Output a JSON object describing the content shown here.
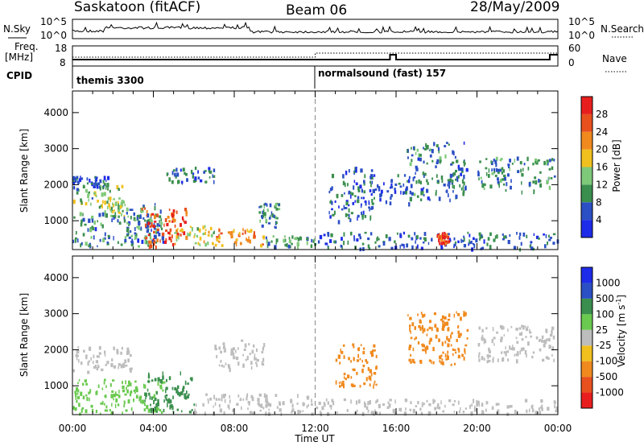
{
  "header": {
    "station": "Saskatoon (fitACF)",
    "beam": "Beam 06",
    "date": "28/May/2009"
  },
  "top_panels": {
    "nsky_label": "N.Sky",
    "nsky_ticks": [
      "10^5",
      "10^0"
    ],
    "nsky_right_ticks": [
      "10^5",
      "10^0"
    ],
    "nsearch_label": "N.Search",
    "freq_label_1": "Freq.",
    "freq_label_2": "[MHz]",
    "freq_ticks": [
      "18",
      "8"
    ],
    "nave_ticks": [
      "60",
      "0"
    ],
    "nave_label": "Nave",
    "cpid_label": "CPID",
    "cpid_segments": [
      {
        "label": "themis 3300",
        "start_hour": 0,
        "end_hour": 12
      },
      {
        "label": "normalsound (fast) 157",
        "start_hour": 12,
        "end_hour": 24
      }
    ]
  },
  "chart_data": [
    {
      "type": "heatmap",
      "title": "",
      "xlabel": "",
      "ylabel": "Slant Range [km]",
      "x_range_hours": [
        0,
        24
      ],
      "ylim": [
        200,
        4600
      ],
      "yticks": [
        1000,
        2000,
        3000,
        4000
      ],
      "colorbar": {
        "label": "Power [dB]",
        "ticks": [
          4,
          8,
          12,
          16,
          20,
          24,
          28
        ],
        "range": [
          0,
          32
        ],
        "colors": [
          "#1e2be8",
          "#2b4fc4",
          "#3b8f4e",
          "#7fc97a",
          "#f0c01e",
          "#f08a1e",
          "#e8501e",
          "#e81e1e"
        ]
      },
      "dashed_marker_hour": 12,
      "echo_regions": [
        {
          "t0": 0.0,
          "t1": 2.6,
          "r0": 1500,
          "r1": 2000,
          "value": 12
        },
        {
          "t0": 0.0,
          "t1": 1.8,
          "r0": 1950,
          "r1": 2250,
          "value": 6
        },
        {
          "t0": 1.3,
          "t1": 2.6,
          "r0": 1150,
          "r1": 1700,
          "value": 14
        },
        {
          "t0": 0.0,
          "t1": 4.5,
          "r0": 300,
          "r1": 1250,
          "value": 8
        },
        {
          "t0": 2.5,
          "t1": 4.5,
          "r0": 400,
          "r1": 1500,
          "value": 10
        },
        {
          "t0": 3.4,
          "t1": 5.6,
          "r0": 300,
          "r1": 1400,
          "value": 27
        },
        {
          "t0": 5.0,
          "t1": 7.0,
          "r0": 350,
          "r1": 900,
          "value": 16
        },
        {
          "t0": 7.0,
          "t1": 9.5,
          "r0": 350,
          "r1": 800,
          "value": 22
        },
        {
          "t0": 9.5,
          "t1": 12.0,
          "r0": 300,
          "r1": 600,
          "value": 10
        },
        {
          "t0": 9.2,
          "t1": 10.2,
          "r0": 800,
          "r1": 1500,
          "value": 9
        },
        {
          "t0": 4.6,
          "t1": 7.0,
          "r0": 2100,
          "r1": 2500,
          "value": 7
        },
        {
          "t0": 12.0,
          "t1": 24.0,
          "r0": 250,
          "r1": 700,
          "value": 7
        },
        {
          "t0": 12.6,
          "t1": 14.8,
          "r0": 1000,
          "r1": 2500,
          "value": 7
        },
        {
          "t0": 14.5,
          "t1": 16.8,
          "r0": 1500,
          "r1": 2300,
          "value": 6
        },
        {
          "t0": 16.5,
          "t1": 19.5,
          "r0": 1600,
          "r1": 3200,
          "value": 8
        },
        {
          "t0": 20.0,
          "t1": 23.8,
          "r0": 1800,
          "r1": 2800,
          "value": 9
        },
        {
          "t0": 18.0,
          "t1": 18.6,
          "r0": 400,
          "r1": 700,
          "value": 28
        }
      ]
    },
    {
      "type": "heatmap",
      "title": "",
      "xlabel": "Time UT",
      "ylabel": "Slant Range [km]",
      "x_range_hours": [
        0,
        24
      ],
      "xticks": [
        "00:00",
        "04:00",
        "08:00",
        "12:00",
        "16:00",
        "20:00",
        "00:00"
      ],
      "ylim": [
        200,
        4600
      ],
      "yticks": [
        1000,
        2000,
        3000,
        4000
      ],
      "colorbar": {
        "label": "Velocity [m s^-1]",
        "ticks": [
          1000,
          500,
          100,
          25,
          -25,
          -100,
          -500,
          -1000
        ],
        "colors": [
          "#1e2be8",
          "#2b4fc4",
          "#3b8f4e",
          "#6ac94f",
          "#bdbdbd",
          "#f0c01e",
          "#f08a1e",
          "#e8501e",
          "#e81e1e"
        ]
      },
      "dashed_marker_hour": 12,
      "echo_regions": [
        {
          "t0": 0.0,
          "t1": 3.0,
          "r0": 1400,
          "r1": 2100,
          "value": 0
        },
        {
          "t0": 0.0,
          "t1": 4.5,
          "r0": 250,
          "r1": 1200,
          "value": 80
        },
        {
          "t0": 3.5,
          "t1": 6.0,
          "r0": 300,
          "r1": 1400,
          "value": 300
        },
        {
          "t0": 6.0,
          "t1": 12.0,
          "r0": 250,
          "r1": 800,
          "value": 0
        },
        {
          "t0": 12.0,
          "t1": 24.0,
          "r0": 250,
          "r1": 650,
          "value": 0
        },
        {
          "t0": 13.0,
          "t1": 15.0,
          "r0": 1000,
          "r1": 2200,
          "value": -200
        },
        {
          "t0": 16.5,
          "t1": 19.5,
          "r0": 1600,
          "r1": 3100,
          "value": -300
        },
        {
          "t0": 20.0,
          "t1": 23.8,
          "r0": 1700,
          "r1": 2700,
          "value": 0
        },
        {
          "t0": 7.0,
          "t1": 9.5,
          "r0": 1500,
          "r1": 2300,
          "value": 0
        }
      ]
    }
  ]
}
